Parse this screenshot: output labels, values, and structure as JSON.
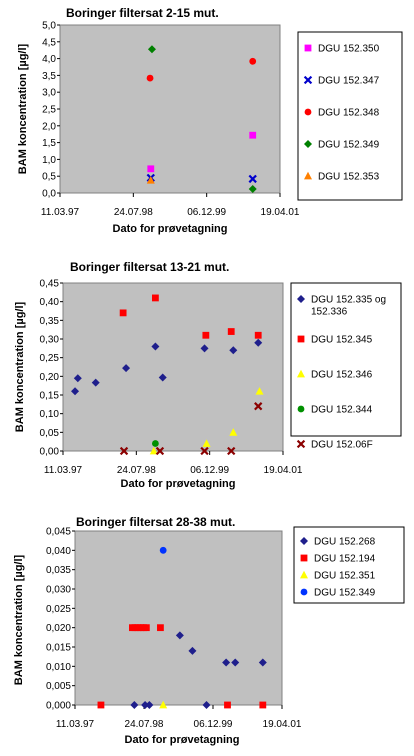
{
  "chart_data": [
    {
      "type": "scatter",
      "title": "Boringer filtersat 2-15 mut.",
      "xlabel": "Dato for prøvetagning",
      "ylabel": "BAM koncentration [µg/l]",
      "ylim": [
        0,
        5
      ],
      "yticks": [
        "0,0",
        "0,5",
        "1,0",
        "1,5",
        "2,0",
        "2,5",
        "3,0",
        "3,5",
        "4,0",
        "4,5",
        "5,0"
      ],
      "xlim": [
        "1997-03-11",
        "2001-04-19"
      ],
      "xticks": [
        "11.03.97",
        "24.07.98",
        "06.12.99",
        "19.04.01"
      ],
      "grid": false,
      "legend": "right",
      "series": [
        {
          "name": "DGU 152.350",
          "color": "#ff00ff",
          "marker": "square",
          "points": [
            [
              "1998-11-20",
              0.72
            ],
            [
              "2000-10-15",
              1.72
            ]
          ]
        },
        {
          "name": "DGU 152.347",
          "color": "#0000cc",
          "marker": "x",
          "points": [
            [
              "1998-11-20",
              0.45
            ],
            [
              "2000-10-15",
              0.42
            ]
          ]
        },
        {
          "name": "DGU 152.348",
          "color": "#ff0000",
          "marker": "circle",
          "points": [
            [
              "1998-11-15",
              3.42
            ],
            [
              "2000-10-15",
              3.92
            ]
          ]
        },
        {
          "name": "DGU 152.349",
          "color": "#008000",
          "marker": "diamond",
          "points": [
            [
              "1998-11-28",
              4.28
            ],
            [
              "2000-10-15",
              0.12
            ]
          ]
        },
        {
          "name": "DGU 152.353",
          "color": "#ff8000",
          "marker": "triangle",
          "points": [
            [
              "1998-11-20",
              0.38
            ]
          ]
        }
      ]
    },
    {
      "type": "scatter",
      "title": "Boringer filtersat 13-21 mut.",
      "xlabel": "Dato for prøvetagning",
      "ylabel": "BAM koncentration [µg/l]",
      "ylim": [
        0,
        0.45
      ],
      "yticks": [
        "0,00",
        "0,05",
        "0,10",
        "0,15",
        "0,20",
        "0,25",
        "0,30",
        "0,35",
        "0,40",
        "0,45"
      ],
      "xlim": [
        "1997-03-11",
        "2001-04-19"
      ],
      "xticks": [
        "11.03.97",
        "24.07.98",
        "06.12.99",
        "19.04.01"
      ],
      "grid": false,
      "legend": "right",
      "series": [
        {
          "name": "DGU 152.335 og 152.336",
          "color": "#1f1f8c",
          "marker": "diamond",
          "points": [
            [
              "1997-06-01",
              0.16
            ],
            [
              "1997-06-20",
              0.195
            ],
            [
              "1997-10-20",
              0.183
            ],
            [
              "1998-05-15",
              0.222
            ],
            [
              "1998-12-01",
              0.28
            ],
            [
              "1999-01-20",
              0.197
            ],
            [
              "1999-11-01",
              0.275
            ],
            [
              "2000-05-15",
              0.27
            ],
            [
              "2000-11-01",
              0.29
            ]
          ]
        },
        {
          "name": "DGU 152.345",
          "color": "#ff0000",
          "marker": "square",
          "points": [
            [
              "1998-04-25",
              0.37
            ],
            [
              "1998-12-01",
              0.41
            ],
            [
              "1999-11-10",
              0.31
            ],
            [
              "2000-05-01",
              0.32
            ],
            [
              "2000-11-01",
              0.31
            ]
          ]
        },
        {
          "name": "DGU 152.346",
          "color": "#ffff00",
          "marker": "triangle",
          "points": [
            [
              "1998-11-20",
              0.0
            ],
            [
              "1999-11-15",
              0.02
            ],
            [
              "2000-05-15",
              0.05
            ],
            [
              "2000-11-10",
              0.16
            ]
          ]
        },
        {
          "name": "DGU 152.344",
          "color": "#009000",
          "marker": "circle",
          "points": [
            [
              "1998-12-01",
              0.02
            ]
          ]
        },
        {
          "name": "DGU 152.06F",
          "color": "#8b0000",
          "marker": "x",
          "points": [
            [
              "1998-05-01",
              0.0
            ],
            [
              "1999-01-01",
              0.0
            ],
            [
              "1999-11-01",
              0.0
            ],
            [
              "2000-05-01",
              0.0
            ],
            [
              "2000-11-01",
              0.12
            ]
          ]
        }
      ]
    },
    {
      "type": "scatter",
      "title": "Boringer filtersat 28-38 mut.",
      "xlabel": "Dato for prøvetagning",
      "ylabel": "BAM koncentration [µg/l]",
      "ylim": [
        0,
        0.045
      ],
      "yticks": [
        "0,000",
        "0,005",
        "0,010",
        "0,015",
        "0,020",
        "0,025",
        "0,030",
        "0,035",
        "0,040",
        "0,045"
      ],
      "xlim": [
        "1997-03-11",
        "2001-04-19"
      ],
      "xticks": [
        "11.03.97",
        "24.07.98",
        "06.12.99",
        "19.04.01"
      ],
      "grid": false,
      "legend": "top-right",
      "series": [
        {
          "name": "DGU 152.268",
          "color": "#1f1f8c",
          "marker": "diamond",
          "points": [
            [
              "1998-05-15",
              0.0
            ],
            [
              "1998-08-01",
              0.0
            ],
            [
              "1998-09-01",
              0.0
            ],
            [
              "1999-04-10",
              0.018
            ],
            [
              "1999-07-10",
              0.014
            ],
            [
              "1999-10-20",
              0.0
            ],
            [
              "2000-03-10",
              0.011
            ],
            [
              "2000-05-15",
              0.011
            ],
            [
              "2000-12-01",
              0.011
            ]
          ]
        },
        {
          "name": "DGU 152.194",
          "color": "#ff0000",
          "marker": "square",
          "points": [
            [
              "1997-09-15",
              0.0
            ],
            [
              "1998-05-01",
              0.02
            ],
            [
              "1998-05-20",
              0.02
            ],
            [
              "1998-06-10",
              0.02
            ],
            [
              "1998-07-01",
              0.02
            ],
            [
              "1998-07-20",
              0.02
            ],
            [
              "1998-08-10",
              0.02
            ],
            [
              "1998-11-20",
              0.02
            ],
            [
              "2000-03-20",
              0.0
            ],
            [
              "2000-12-01",
              0.0
            ]
          ]
        },
        {
          "name": "DGU 152.351",
          "color": "#ffff00",
          "marker": "triangle",
          "points": [
            [
              "1998-12-10",
              0.0
            ]
          ]
        },
        {
          "name": "DGU 152.349",
          "color": "#0033ff",
          "marker": "circle",
          "points": [
            [
              "1998-12-10",
              0.04
            ]
          ]
        }
      ]
    }
  ]
}
